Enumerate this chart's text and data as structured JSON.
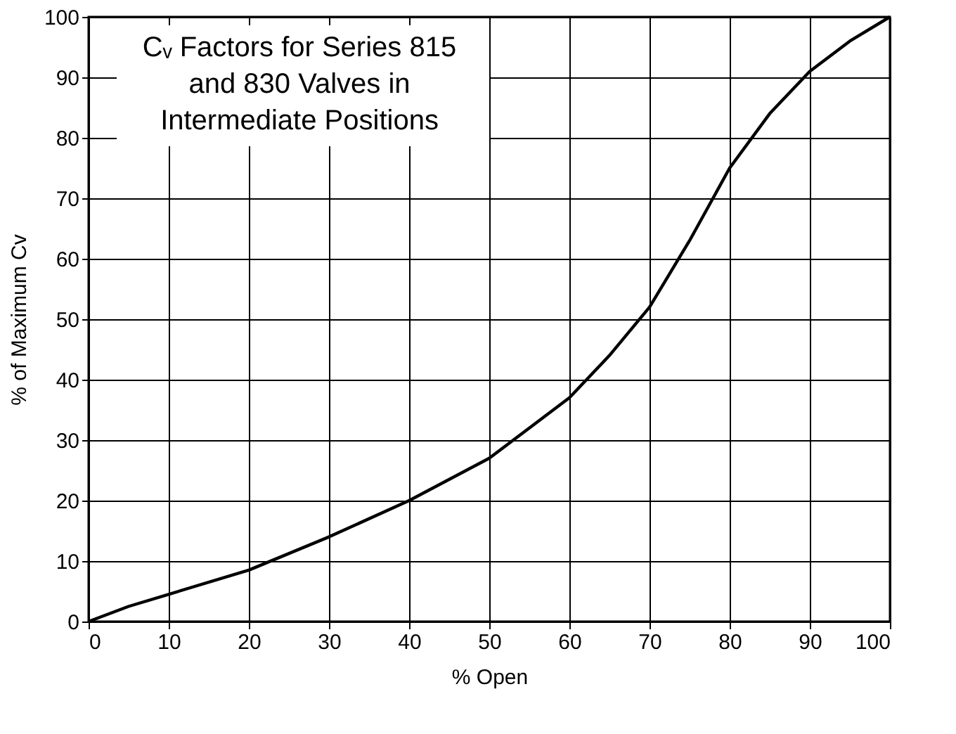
{
  "chart_data": {
    "type": "line",
    "title": "Cᵥ Factors for Series 815 and 830 Valves in Intermediate Positions",
    "xlabel": "% Open",
    "ylabel": "% of Maximum Cv",
    "x": [
      0,
      5,
      10,
      20,
      30,
      40,
      50,
      60,
      65,
      70,
      75,
      80,
      85,
      90,
      95,
      100
    ],
    "series": [
      {
        "color": "#000000",
        "values": [
          0,
          2.5,
          4.5,
          8.5,
          14,
          20,
          27,
          37,
          44,
          52,
          63,
          75,
          84,
          91,
          96,
          100
        ]
      }
    ],
    "xlim": [
      0,
      100
    ],
    "ylim": [
      0,
      100
    ],
    "xticks": [
      0,
      10,
      20,
      30,
      40,
      50,
      60,
      70,
      80,
      90,
      100
    ],
    "yticks": [
      0,
      10,
      20,
      30,
      40,
      50,
      60,
      70,
      80,
      90,
      100
    ],
    "grid": true,
    "marker": "none",
    "line_style": "solid"
  }
}
